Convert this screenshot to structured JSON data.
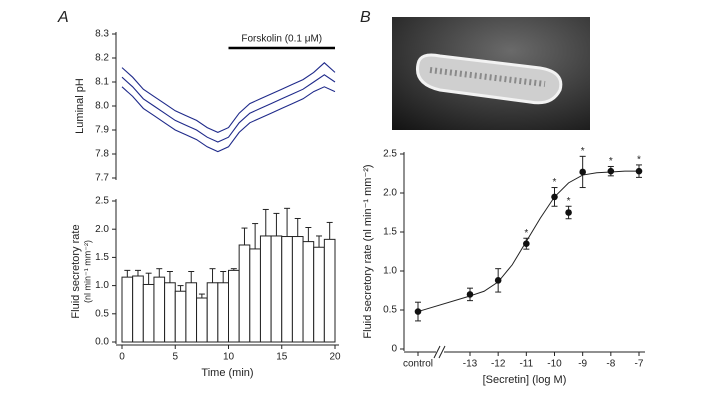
{
  "chart_data": [
    {
      "type": "line",
      "panel": "A",
      "y_label": "Luminal pH",
      "x": [
        0,
        1,
        2,
        3,
        4,
        5,
        6,
        7,
        8,
        9,
        10,
        11,
        12,
        13,
        14,
        15,
        16,
        17,
        18,
        19,
        20
      ],
      "series": [
        {
          "color": "#1f2a8a",
          "values": [
            8.16,
            8.12,
            8.07,
            8.04,
            8.01,
            7.98,
            7.96,
            7.94,
            7.91,
            7.89,
            7.91,
            7.97,
            8.01,
            8.03,
            8.05,
            8.07,
            8.09,
            8.11,
            8.14,
            8.18,
            8.14
          ]
        },
        {
          "color": "#1f2a8a",
          "values": [
            8.12,
            8.08,
            8.03,
            8.0,
            7.97,
            7.94,
            7.92,
            7.9,
            7.87,
            7.85,
            7.87,
            7.93,
            7.97,
            7.99,
            8.01,
            8.03,
            8.05,
            8.07,
            8.1,
            8.13,
            8.1
          ]
        },
        {
          "color": "#1f2a8a",
          "values": [
            8.08,
            8.04,
            7.99,
            7.96,
            7.93,
            7.9,
            7.88,
            7.86,
            7.83,
            7.81,
            7.83,
            7.89,
            7.93,
            7.95,
            7.97,
            7.99,
            8.01,
            8.03,
            8.06,
            8.08,
            8.06
          ]
        }
      ],
      "xlim": [
        0,
        20
      ],
      "ylim": [
        7.7,
        8.3
      ],
      "yticks": [
        7.7,
        7.8,
        7.9,
        {
          "value": 8,
          "label": "8.0"
        },
        8.1,
        8.2,
        8.3
      ],
      "annotation": {
        "label": "Forskolin (0.1 μM)",
        "x": [
          10,
          20
        ]
      }
    },
    {
      "type": "bar",
      "y_label": "Fluid secretory rate",
      "y_unit": "(nl min⁻¹ mm⁻²)",
      "x_label": "Time (min)",
      "x": [
        0.5,
        1.5,
        2.5,
        3.5,
        4.5,
        5.5,
        6.5,
        7.5,
        8.5,
        9.5,
        10.5,
        11.5,
        12.5,
        13.5,
        14.5,
        15.5,
        16.5,
        17.5,
        18.5,
        19.5
      ],
      "values": [
        1.15,
        1.17,
        1.02,
        1.15,
        1.05,
        0.9,
        1.05,
        0.78,
        1.05,
        1.05,
        1.27,
        1.72,
        1.65,
        1.88,
        1.88,
        1.87,
        1.87,
        1.78,
        1.68,
        1.82
      ],
      "errors": [
        0.12,
        0.1,
        0.2,
        0.15,
        0.2,
        0.1,
        0.2,
        0.07,
        0.25,
        0.2,
        0.03,
        0.3,
        0.45,
        0.47,
        0.4,
        0.5,
        0.32,
        0.25,
        0.2,
        0.3
      ],
      "xlim": [
        0,
        20
      ],
      "xticks": [
        0,
        5,
        10,
        15,
        20
      ],
      "ylim": [
        0,
        2.5
      ],
      "yticks": [
        {
          "value": 0,
          "label": "0.0"
        },
        0.5,
        {
          "value": 1,
          "label": "1.0"
        },
        1.5,
        {
          "value": 2,
          "label": "2.0"
        },
        2.5
      ]
    },
    {
      "type": "scatter",
      "panel": "B",
      "y_label": "Fluid secretory rate (nl min⁻¹ mm⁻²)",
      "x_label": "[Secretin] (log M)",
      "control": {
        "label": "control",
        "value": 0.48,
        "error": 0.12
      },
      "x": [
        -13,
        -12,
        -11,
        -10,
        -9.5,
        -9,
        -8,
        -7
      ],
      "values": [
        0.7,
        0.88,
        1.35,
        1.95,
        1.75,
        2.27,
        2.28,
        2.28
      ],
      "errors": [
        0.08,
        0.15,
        0.07,
        0.12,
        0.08,
        0.2,
        0.06,
        0.08
      ],
      "asterisks": [
        null,
        null,
        "*",
        "*",
        "*",
        "*",
        "*",
        "*"
      ],
      "curve": {
        "x": [
          -13,
          -12.5,
          -12,
          -11.5,
          -11,
          -10.5,
          -10,
          -9.5,
          -9,
          -8.5,
          -8,
          -7.5,
          -7
        ],
        "values": [
          0.68,
          0.74,
          0.86,
          1.08,
          1.38,
          1.68,
          1.95,
          2.13,
          2.23,
          2.26,
          2.27,
          2.28,
          2.28
        ]
      },
      "xlim": [
        -13,
        -7
      ],
      "xticks": [
        -13,
        -12,
        -11,
        -10,
        -9,
        -8,
        -7
      ],
      "ylim": [
        0,
        2.5
      ],
      "yticks": [
        0,
        0.5,
        {
          "value": 1,
          "label": "1.0"
        },
        1.5,
        {
          "value": 2,
          "label": "2.0"
        },
        2.5
      ]
    }
  ]
}
